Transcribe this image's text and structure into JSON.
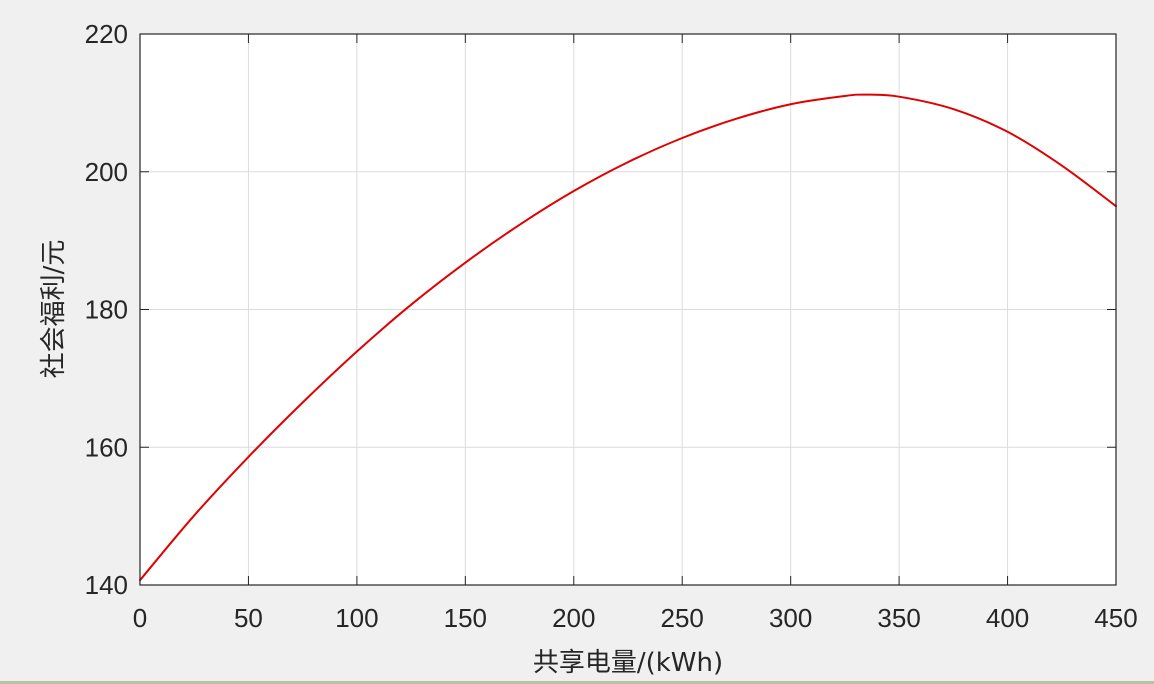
{
  "chart_data": {
    "type": "line",
    "title": "",
    "xlabel": "共享电量/(kWh)",
    "ylabel": "社会福利/元",
    "xlim": [
      0,
      450
    ],
    "ylim": [
      140,
      220
    ],
    "xticks": [
      0,
      50,
      100,
      150,
      200,
      250,
      300,
      350,
      400,
      450
    ],
    "yticks": [
      140,
      160,
      180,
      200,
      220
    ],
    "xtick_labels": [
      "0",
      "50",
      "100",
      "150",
      "200",
      "250",
      "300",
      "350",
      "400",
      "450"
    ],
    "ytick_labels": [
      "140",
      "160",
      "180",
      "200",
      "220"
    ],
    "grid": true,
    "line_color": "#e00000",
    "series": [
      {
        "x": [
          0,
          25,
          50,
          75,
          100,
          125,
          150,
          175,
          200,
          225,
          250,
          275,
          300,
          325,
          335,
          350,
          375,
          400,
          425,
          450
        ],
        "y": [
          140.7,
          150.1,
          158.6,
          166.5,
          173.9,
          180.7,
          186.8,
          192.3,
          197.2,
          201.4,
          204.9,
          207.7,
          209.8,
          211.0,
          211.2,
          210.9,
          209.1,
          205.8,
          200.9,
          195.0
        ]
      }
    ]
  }
}
